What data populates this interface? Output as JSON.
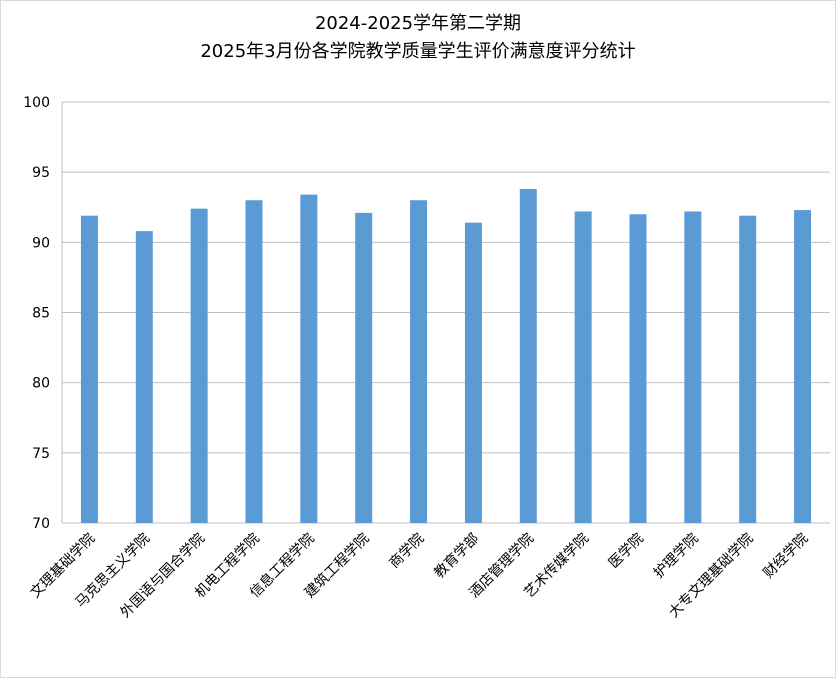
{
  "chart_data": {
    "type": "bar",
    "title": [
      "2024-2025学年第二学期",
      "2025年3月份各学院教学质量学生评价满意度评分统计"
    ],
    "categories": [
      "文理基础学院",
      "马克思主义学院",
      "外国语与国合学院",
      "机电工程学院",
      "信息工程学院",
      "建筑工程学院",
      "商学院",
      "教育学部",
      "酒店管理学院",
      "艺术传媒学院",
      "医学院",
      "护理学院",
      "大专文理基础学院",
      "财经学院"
    ],
    "values": [
      91.9,
      90.8,
      92.4,
      93.0,
      93.4,
      92.1,
      93.0,
      91.4,
      93.8,
      92.2,
      92.0,
      92.2,
      91.9,
      92.3
    ],
    "ylim": [
      70,
      100
    ],
    "yticks": [
      "70",
      "75",
      "80",
      "85",
      "90",
      "95",
      "100"
    ],
    "xlabel": "",
    "ylabel": "",
    "grid": true,
    "legend": "none",
    "bar_color": "#5b9bd5",
    "grid_color": "#bfbfbf"
  }
}
